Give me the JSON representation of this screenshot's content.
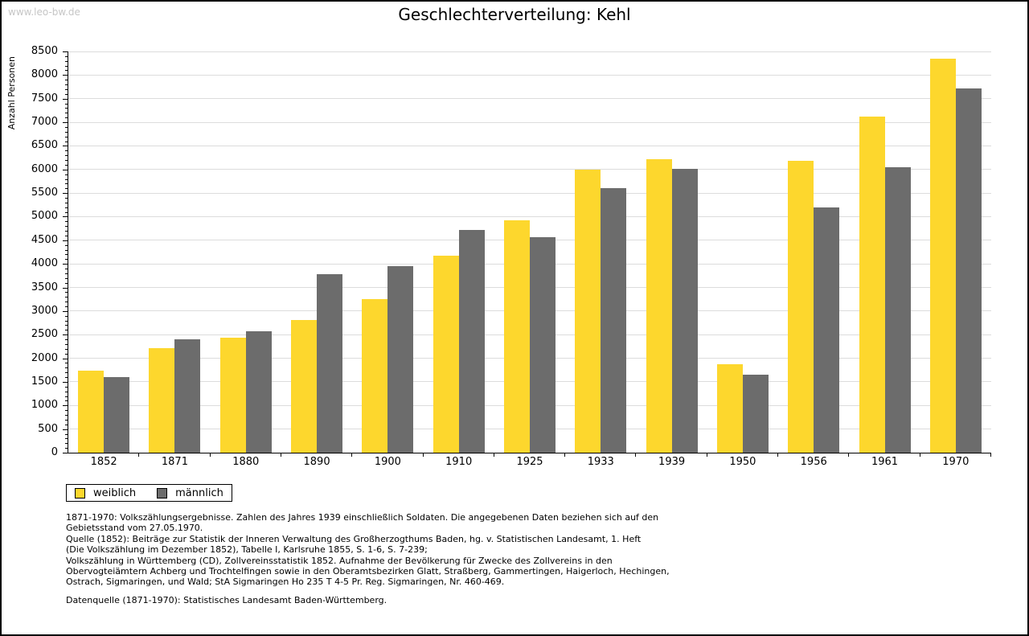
{
  "watermark": "www.leo-bw.de",
  "title": "Geschlechterverteilung: Kehl",
  "chart_data": {
    "type": "bar",
    "title": "Geschlechterverteilung: Kehl",
    "xlabel": "",
    "ylabel": "Anzahl Personen",
    "ylim": [
      0,
      8500
    ],
    "ytick_step": 500,
    "yminor_step": 100,
    "grid": true,
    "legend_position": "bottom-left",
    "categories": [
      "1852",
      "1871",
      "1880",
      "1890",
      "1900",
      "1910",
      "1925",
      "1933",
      "1939",
      "1950",
      "1956",
      "1961",
      "1970"
    ],
    "series": [
      {
        "name": "weiblich",
        "color": "#fdd72d",
        "values": [
          1730,
          2210,
          2440,
          2810,
          3260,
          4170,
          4930,
          6000,
          6220,
          1870,
          6190,
          7120,
          8350
        ]
      },
      {
        "name": "männlich",
        "color": "#6c6c6c",
        "values": [
          1600,
          2400,
          2570,
          3780,
          3950,
          4720,
          4560,
          5600,
          6020,
          1660,
          5200,
          6040,
          7720
        ]
      }
    ]
  },
  "footnotes": {
    "para1_lines": [
      "1871-1970: Volkszählungsergebnisse. Zahlen des Jahres 1939 einschließlich Soldaten. Die angegebenen Daten beziehen sich auf den",
      "Gebietsstand vom 27.05.1970.",
      "Quelle (1852): Beiträge zur Statistik der Inneren Verwaltung des Großherzogthums Baden, hg. v. Statistischen Landesamt, 1. Heft",
      "(Die Volkszählung im Dezember 1852), Tabelle I, Karlsruhe 1855, S. 1-6, S. 7-239;",
      "Volkszählung in Württemberg (CD), Zollvereinsstatistik 1852. Aufnahme der Bevölkerung für Zwecke des Zollvereins in den",
      "Obervogteiämtern Achberg und Trochtelfingen sowie in den Oberamtsbezirken Glatt, Straßberg, Gammertingen, Haigerloch, Hechingen,",
      "Ostrach, Sigmaringen, und Wald; StA Sigmaringen Ho 235 T 4-5 Pr. Reg. Sigmaringen, Nr. 460-469."
    ],
    "para2": "Datenquelle (1871-1970): Statistisches Landesamt Baden-Württemberg."
  },
  "colors": {
    "weiblich": "#fdd72d",
    "männlich": "#6c6c6c",
    "gridline": "#dcdcdc",
    "watermark": "#c6c6c6",
    "axis": "#000000"
  }
}
